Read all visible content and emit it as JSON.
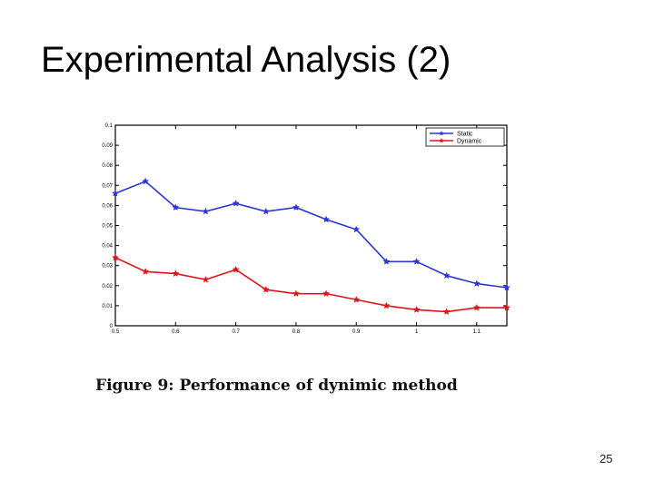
{
  "slide": {
    "title": "Experimental Analysis (2)",
    "caption": "Figure 9: Performance of dynimic method",
    "page_number": "25"
  },
  "chart_data": {
    "type": "line",
    "title": "",
    "xlabel": "",
    "ylabel": "",
    "xlim": [
      0.5,
      1.15
    ],
    "ylim": [
      0,
      0.1
    ],
    "x_ticks": [
      0.5,
      0.6,
      0.7,
      0.8,
      0.9,
      1,
      1.1
    ],
    "x_tick_labels": [
      "0.5",
      "0.6",
      "0.7",
      "0.8",
      "0.9",
      "1",
      "1.1"
    ],
    "y_ticks": [
      0,
      0.01,
      0.02,
      0.03,
      0.04,
      0.05,
      0.06,
      0.07,
      0.08,
      0.09,
      0.1
    ],
    "y_tick_labels": [
      "0",
      "0.01",
      "0.02",
      "0.03",
      "0.04",
      "0.05",
      "0.06",
      "0.07",
      "0.08",
      "0.09",
      "0.1"
    ],
    "grid": false,
    "legend_position": "top-right",
    "x": [
      0.5,
      0.55,
      0.6,
      0.65,
      0.7,
      0.75,
      0.8,
      0.85,
      0.9,
      0.95,
      1.0,
      1.05,
      1.1,
      1.15
    ],
    "series": [
      {
        "name": "Static",
        "color": "#2a37d6",
        "marker": "star",
        "values": [
          0.066,
          0.072,
          0.059,
          0.057,
          0.061,
          0.057,
          0.059,
          0.053,
          0.048,
          0.032,
          0.032,
          0.025,
          0.021,
          0.019
        ]
      },
      {
        "name": "Dynamic",
        "color": "#e0141a",
        "marker": "star",
        "values": [
          0.034,
          0.027,
          0.026,
          0.023,
          0.028,
          0.018,
          0.016,
          0.016,
          0.013,
          0.01,
          0.008,
          0.007,
          0.009,
          0.009
        ]
      }
    ]
  }
}
